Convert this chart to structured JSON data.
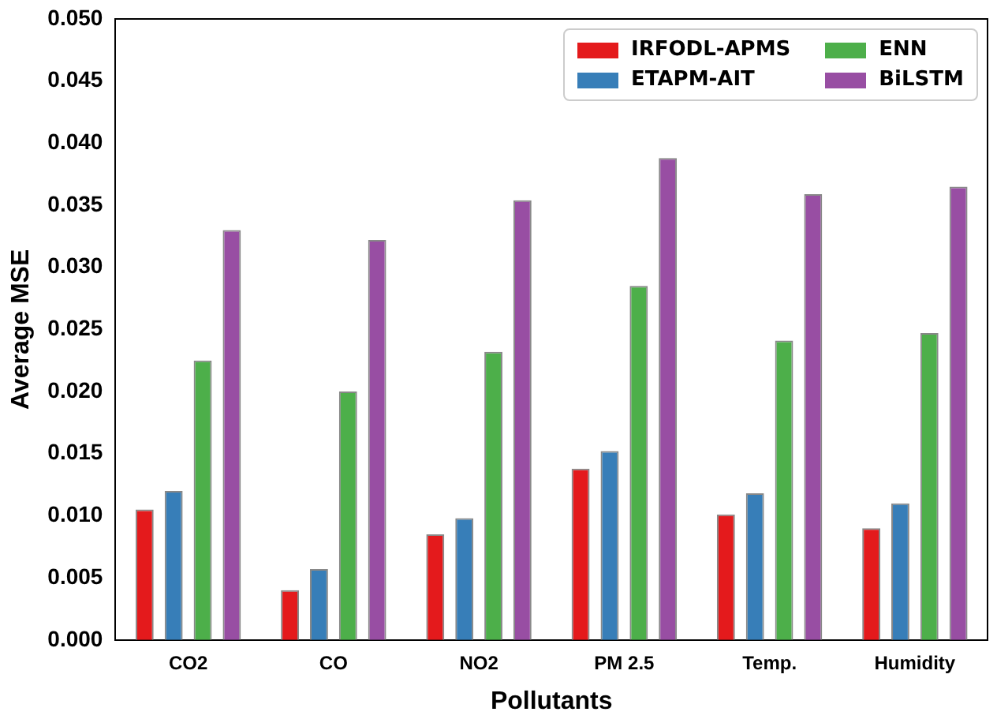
{
  "chart_data": {
    "type": "bar",
    "xlabel": "Pollutants",
    "ylabel": "Average MSE",
    "categories": [
      "CO2",
      "CO",
      "NO2",
      "PM 2.5",
      "Temp.",
      "Humidity"
    ],
    "series": [
      {
        "name": "IRFODL-APMS",
        "color": "#e41a1c",
        "values": [
          0.0105,
          0.004,
          0.0085,
          0.0138,
          0.0101,
          0.009
        ]
      },
      {
        "name": "ETAPM-AIT",
        "color": "#377eb8",
        "values": [
          0.012,
          0.0057,
          0.0098,
          0.0152,
          0.0118,
          0.011
        ]
      },
      {
        "name": "ENN",
        "color": "#4daf4a",
        "values": [
          0.0225,
          0.02,
          0.0232,
          0.0285,
          0.0241,
          0.0247
        ]
      },
      {
        "name": "BiLSTM",
        "color": "#984ea3",
        "values": [
          0.033,
          0.0322,
          0.0354,
          0.0388,
          0.0359,
          0.0365
        ]
      }
    ],
    "ylim": [
      0,
      0.05
    ],
    "yticks": [
      {
        "value": 0,
        "label": "0.000"
      },
      {
        "value": 0.005,
        "label": "0.005"
      },
      {
        "value": 0.01,
        "label": "0.010"
      },
      {
        "value": 0.015,
        "label": "0.015"
      },
      {
        "value": 0.02,
        "label": "0.020"
      },
      {
        "value": 0.025,
        "label": "0.025"
      },
      {
        "value": 0.03,
        "label": "0.030"
      },
      {
        "value": 0.035,
        "label": "0.035"
      },
      {
        "value": 0.04,
        "label": "0.040"
      },
      {
        "value": 0.045,
        "label": "0.045"
      },
      {
        "value": 0.05,
        "label": "0.050"
      }
    ],
    "grid": false,
    "legend": "top right"
  }
}
